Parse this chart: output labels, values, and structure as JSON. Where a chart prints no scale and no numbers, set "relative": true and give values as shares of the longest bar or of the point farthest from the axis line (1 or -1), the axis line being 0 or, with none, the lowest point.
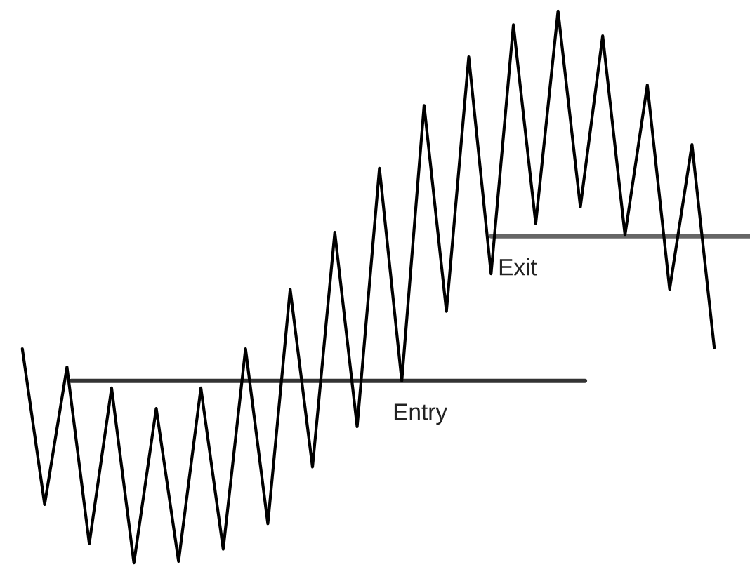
{
  "chart_data": {
    "type": "line",
    "relative": true,
    "categories": [
      null,
      null,
      null,
      null,
      null,
      null,
      null,
      null,
      null,
      null,
      null,
      null,
      null,
      null,
      null,
      null,
      null,
      null,
      null,
      null,
      null,
      null,
      null,
      null,
      null,
      null,
      null,
      null,
      null,
      null,
      null,
      null
    ],
    "series": [
      {
        "color": "#000000",
        "values": [
          0.388,
          0.106,
          0.355,
          0.035,
          0.317,
          0,
          0.28,
          0.003,
          0.317,
          0.025,
          0.388,
          0.071,
          0.496,
          0.174,
          0.599,
          0.247,
          0.715,
          0.33,
          0.829,
          0.456,
          0.917,
          0.524,
          0.975,
          0.615,
          1,
          0.645,
          0.955,
          0.594,
          0.866,
          0.496,
          0.758,
          0.39
        ]
      }
    ],
    "ref_lines": [
      {
        "axis": "y",
        "value": 0.33,
        "label": "Entry",
        "color": "#333333"
      },
      {
        "axis": "y",
        "value": 0.592,
        "label": "Exit",
        "color": "#666666"
      }
    ],
    "marker": "none",
    "line_style": "solid"
  }
}
